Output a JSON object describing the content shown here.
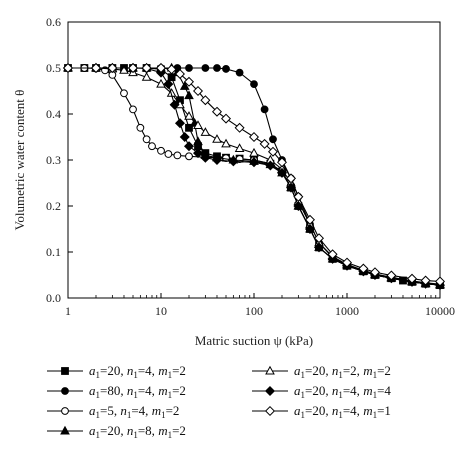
{
  "chart_data": {
    "type": "line",
    "xscale": "log",
    "xlim": [
      1,
      10000
    ],
    "ylim": [
      0.0,
      0.6
    ],
    "xlabel": "Matric suction ψ (kPa)",
    "ylabel": "Volumetric water content θ",
    "x_ticks": [
      1,
      10,
      100,
      1000,
      10000
    ],
    "x_tick_labels": [
      "1",
      "10",
      "100",
      "1000",
      "10000"
    ],
    "y_ticks": [
      0.0,
      0.1,
      0.2,
      0.3,
      0.4,
      0.5,
      0.6
    ],
    "y_tick_labels": [
      "0.0",
      "0.1",
      "0.2",
      "0.3",
      "0.4",
      "0.5",
      "0.6"
    ],
    "grid": false,
    "legend_position": "bottom",
    "series": [
      {
        "name": "a1=20, n1=4, m1=2",
        "legend_label": {
          "pre": "a",
          "sub1": "1",
          "mid1": "=20, ",
          "n": "n",
          "sub2": "1",
          "mid2": "=4, ",
          "m": "m",
          "sub3": "1",
          "post": "=2"
        },
        "marker": "square-filled",
        "points": [
          [
            1,
            0.5
          ],
          [
            1.5,
            0.5
          ],
          [
            2,
            0.5
          ],
          [
            3,
            0.5
          ],
          [
            4,
            0.5
          ],
          [
            5,
            0.5
          ],
          [
            7,
            0.5
          ],
          [
            10,
            0.497
          ],
          [
            13,
            0.48
          ],
          [
            16,
            0.43
          ],
          [
            20,
            0.37
          ],
          [
            25,
            0.33
          ],
          [
            30,
            0.315
          ],
          [
            40,
            0.308
          ],
          [
            50,
            0.305
          ],
          [
            70,
            0.303
          ],
          [
            100,
            0.3
          ],
          [
            150,
            0.292
          ],
          [
            200,
            0.275
          ],
          [
            250,
            0.24
          ],
          [
            300,
            0.2
          ],
          [
            400,
            0.15
          ],
          [
            500,
            0.11
          ],
          [
            700,
            0.085
          ],
          [
            1000,
            0.07
          ],
          [
            1500,
            0.058
          ],
          [
            2000,
            0.05
          ],
          [
            3000,
            0.043
          ],
          [
            4000,
            0.038
          ],
          [
            5000,
            0.035
          ],
          [
            7000,
            0.031
          ],
          [
            10000,
            0.028
          ]
        ]
      },
      {
        "name": "a1=80, n1=4, m1=2",
        "legend_label": {
          "pre": "a",
          "sub1": "1",
          "mid1": "=80, ",
          "n": "n",
          "sub2": "1",
          "mid2": "=4, ",
          "m": "m",
          "sub3": "1",
          "post": "=2"
        },
        "marker": "circle-filled",
        "points": [
          [
            1,
            0.5
          ],
          [
            1.5,
            0.5
          ],
          [
            2,
            0.5
          ],
          [
            3,
            0.5
          ],
          [
            5,
            0.5
          ],
          [
            7,
            0.5
          ],
          [
            10,
            0.5
          ],
          [
            15,
            0.5
          ],
          [
            20,
            0.5
          ],
          [
            30,
            0.5
          ],
          [
            40,
            0.5
          ],
          [
            50,
            0.498
          ],
          [
            70,
            0.49
          ],
          [
            100,
            0.465
          ],
          [
            130,
            0.41
          ],
          [
            160,
            0.345
          ],
          [
            200,
            0.3
          ],
          [
            250,
            0.26
          ],
          [
            300,
            0.22
          ],
          [
            400,
            0.16
          ],
          [
            500,
            0.12
          ],
          [
            700,
            0.088
          ],
          [
            1000,
            0.072
          ],
          [
            1500,
            0.06
          ],
          [
            2000,
            0.052
          ],
          [
            3000,
            0.045
          ],
          [
            5000,
            0.036
          ],
          [
            7000,
            0.032
          ],
          [
            10000,
            0.028
          ]
        ]
      },
      {
        "name": "a1=5, n1=4, m1=2",
        "legend_label": {
          "pre": "a",
          "sub1": "1",
          "mid1": "=5, ",
          "n": "n",
          "sub2": "1",
          "mid2": "=4, ",
          "m": "m",
          "sub3": "1",
          "post": "=2"
        },
        "marker": "circle-open",
        "points": [
          [
            1,
            0.5
          ],
          [
            1.5,
            0.5
          ],
          [
            2,
            0.499
          ],
          [
            2.5,
            0.495
          ],
          [
            3,
            0.485
          ],
          [
            4,
            0.445
          ],
          [
            5,
            0.41
          ],
          [
            6,
            0.37
          ],
          [
            7,
            0.345
          ],
          [
            8,
            0.33
          ],
          [
            10,
            0.32
          ],
          [
            12,
            0.313
          ],
          [
            15,
            0.31
          ],
          [
            20,
            0.308
          ],
          [
            30,
            0.306
          ],
          [
            50,
            0.304
          ],
          [
            70,
            0.302
          ],
          [
            100,
            0.3
          ],
          [
            150,
            0.292
          ],
          [
            200,
            0.275
          ],
          [
            250,
            0.24
          ],
          [
            300,
            0.2
          ],
          [
            400,
            0.15
          ],
          [
            500,
            0.11
          ],
          [
            700,
            0.085
          ],
          [
            1000,
            0.07
          ],
          [
            1500,
            0.058
          ],
          [
            2000,
            0.05
          ],
          [
            3000,
            0.043
          ],
          [
            5000,
            0.035
          ],
          [
            7000,
            0.031
          ],
          [
            10000,
            0.028
          ]
        ]
      },
      {
        "name": "a1=20, n1=8, m1=2",
        "legend_label": {
          "pre": "a",
          "sub1": "1",
          "mid1": "=20, ",
          "n": "n",
          "sub2": "1",
          "mid2": "=8, ",
          "m": "m",
          "sub3": "1",
          "post": "=2"
        },
        "marker": "triangle-filled",
        "points": [
          [
            1,
            0.5
          ],
          [
            2,
            0.5
          ],
          [
            3,
            0.5
          ],
          [
            5,
            0.5
          ],
          [
            7,
            0.5
          ],
          [
            10,
            0.5
          ],
          [
            13,
            0.5
          ],
          [
            15,
            0.49
          ],
          [
            18,
            0.46
          ],
          [
            20,
            0.44
          ],
          [
            23,
            0.38
          ],
          [
            25,
            0.34
          ],
          [
            30,
            0.31
          ],
          [
            40,
            0.305
          ],
          [
            60,
            0.3
          ],
          [
            100,
            0.297
          ],
          [
            150,
            0.29
          ],
          [
            200,
            0.272
          ],
          [
            250,
            0.24
          ],
          [
            300,
            0.2
          ],
          [
            400,
            0.15
          ],
          [
            500,
            0.11
          ],
          [
            700,
            0.085
          ],
          [
            1000,
            0.07
          ],
          [
            1500,
            0.058
          ],
          [
            2000,
            0.05
          ],
          [
            3000,
            0.043
          ],
          [
            5000,
            0.035
          ],
          [
            7000,
            0.031
          ],
          [
            10000,
            0.028
          ]
        ]
      },
      {
        "name": "a1=20, n1=2, m1=2",
        "legend_label": {
          "pre": "a",
          "sub1": "1",
          "mid1": "=20, ",
          "n": "n",
          "sub2": "1",
          "mid2": "=2, ",
          "m": "m",
          "sub3": "1",
          "post": "=2"
        },
        "marker": "triangle-open",
        "points": [
          [
            1,
            0.5
          ],
          [
            2,
            0.5
          ],
          [
            3,
            0.498
          ],
          [
            4,
            0.495
          ],
          [
            5,
            0.49
          ],
          [
            7,
            0.48
          ],
          [
            10,
            0.465
          ],
          [
            13,
            0.445
          ],
          [
            16,
            0.42
          ],
          [
            20,
            0.395
          ],
          [
            25,
            0.375
          ],
          [
            30,
            0.36
          ],
          [
            40,
            0.345
          ],
          [
            50,
            0.335
          ],
          [
            70,
            0.325
          ],
          [
            100,
            0.315
          ],
          [
            150,
            0.3
          ],
          [
            200,
            0.28
          ],
          [
            250,
            0.25
          ],
          [
            300,
            0.21
          ],
          [
            400,
            0.16
          ],
          [
            500,
            0.12
          ],
          [
            700,
            0.09
          ],
          [
            1000,
            0.073
          ],
          [
            1500,
            0.06
          ],
          [
            2000,
            0.052
          ],
          [
            3000,
            0.045
          ],
          [
            5000,
            0.037
          ],
          [
            7000,
            0.033
          ],
          [
            10000,
            0.03
          ]
        ]
      },
      {
        "name": "a1=20, n1=4, m1=4",
        "legend_label": {
          "pre": "a",
          "sub1": "1",
          "mid1": "=20, ",
          "n": "n",
          "sub2": "1",
          "mid2": "=4, ",
          "m": "m",
          "sub3": "1",
          "post": "=4"
        },
        "marker": "diamond-filled",
        "points": [
          [
            1,
            0.5
          ],
          [
            2,
            0.5
          ],
          [
            3,
            0.5
          ],
          [
            5,
            0.5
          ],
          [
            7,
            0.499
          ],
          [
            10,
            0.49
          ],
          [
            12,
            0.465
          ],
          [
            14,
            0.42
          ],
          [
            16,
            0.38
          ],
          [
            18,
            0.35
          ],
          [
            20,
            0.33
          ],
          [
            25,
            0.315
          ],
          [
            30,
            0.305
          ],
          [
            40,
            0.3
          ],
          [
            60,
            0.297
          ],
          [
            100,
            0.295
          ],
          [
            150,
            0.288
          ],
          [
            200,
            0.272
          ],
          [
            250,
            0.24
          ],
          [
            300,
            0.2
          ],
          [
            400,
            0.15
          ],
          [
            500,
            0.11
          ],
          [
            700,
            0.085
          ],
          [
            1000,
            0.07
          ],
          [
            1500,
            0.058
          ],
          [
            2000,
            0.05
          ],
          [
            3000,
            0.043
          ],
          [
            5000,
            0.035
          ],
          [
            7000,
            0.031
          ],
          [
            10000,
            0.028
          ]
        ]
      },
      {
        "name": "a1=20, n1=4, m1=1",
        "legend_label": {
          "pre": "a",
          "sub1": "1",
          "mid1": "=20, ",
          "n": "n",
          "sub2": "1",
          "mid2": "=4, ",
          "m": "m",
          "sub3": "1",
          "post": "=1"
        },
        "marker": "diamond-open",
        "points": [
          [
            1,
            0.5
          ],
          [
            2,
            0.5
          ],
          [
            3,
            0.5
          ],
          [
            5,
            0.5
          ],
          [
            7,
            0.5
          ],
          [
            10,
            0.5
          ],
          [
            13,
            0.497
          ],
          [
            16,
            0.487
          ],
          [
            20,
            0.47
          ],
          [
            25,
            0.45
          ],
          [
            30,
            0.43
          ],
          [
            40,
            0.405
          ],
          [
            50,
            0.39
          ],
          [
            70,
            0.37
          ],
          [
            100,
            0.35
          ],
          [
            130,
            0.335
          ],
          [
            160,
            0.318
          ],
          [
            200,
            0.295
          ],
          [
            250,
            0.26
          ],
          [
            300,
            0.22
          ],
          [
            400,
            0.17
          ],
          [
            500,
            0.13
          ],
          [
            700,
            0.095
          ],
          [
            1000,
            0.077
          ],
          [
            1500,
            0.064
          ],
          [
            2000,
            0.056
          ],
          [
            3000,
            0.049
          ],
          [
            5000,
            0.042
          ],
          [
            7000,
            0.038
          ],
          [
            10000,
            0.036
          ]
        ]
      }
    ]
  }
}
